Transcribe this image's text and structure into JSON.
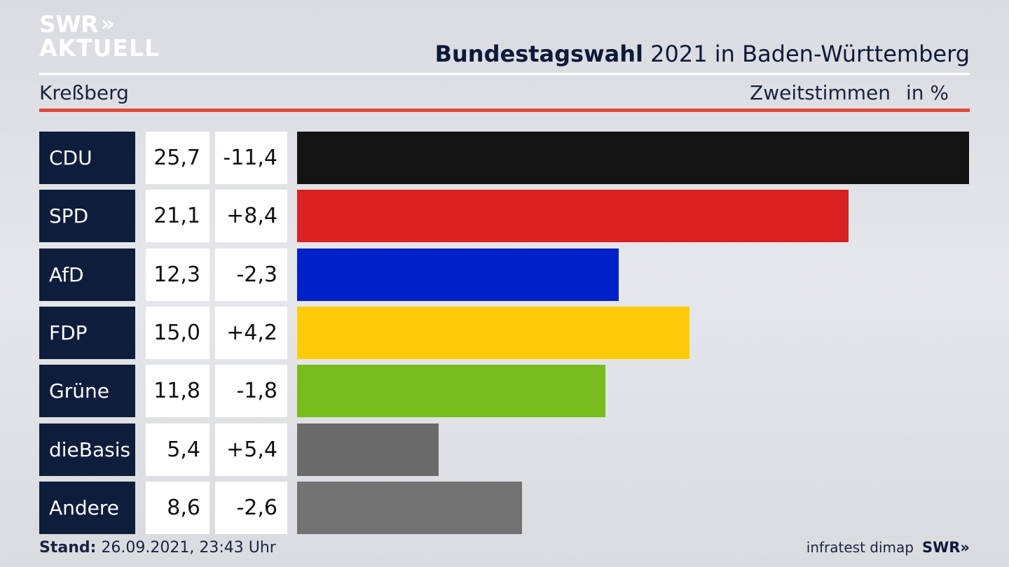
{
  "logo": {
    "line1": "SWR",
    "arrows": "»",
    "line2": "AKTUELL"
  },
  "header": {
    "title_bold": "Bundestagswahl",
    "title_rest": " 2021 in Baden-Württemberg",
    "region": "Kreßberg",
    "measure": "Zweitstimmen",
    "unit": "in %"
  },
  "chart_data": {
    "type": "bar",
    "categories": [
      "CDU",
      "SPD",
      "AfD",
      "FDP",
      "Grüne",
      "dieBasis",
      "Andere"
    ],
    "series": [
      {
        "name": "Zweitstimmen",
        "values": [
          25.7,
          21.1,
          12.3,
          15.0,
          11.8,
          5.4,
          8.6
        ]
      }
    ],
    "value_labels": [
      "25,7",
      "21,1",
      "12,3",
      "15,0",
      "11,8",
      "5,4",
      "8,6"
    ],
    "change_labels": [
      "-11,4",
      "+8,4",
      "-2,3",
      "+4,2",
      "-1,8",
      "+5,4",
      "-2,6"
    ],
    "changes": [
      -11.4,
      8.4,
      -2.3,
      4.2,
      -1.8,
      5.4,
      -2.6
    ],
    "colors": [
      "#141414",
      "#d92121",
      "#0021c8",
      "#fdcb0a",
      "#78bc1e",
      "#6a6a6a",
      "#727272"
    ],
    "orientation": "horizontal"
  },
  "footer": {
    "stand_label": "Stand:",
    "stand_value": " 26.09.2021, 23:43 Uhr",
    "source": "infratest dimap",
    "brand": "SWR»"
  }
}
